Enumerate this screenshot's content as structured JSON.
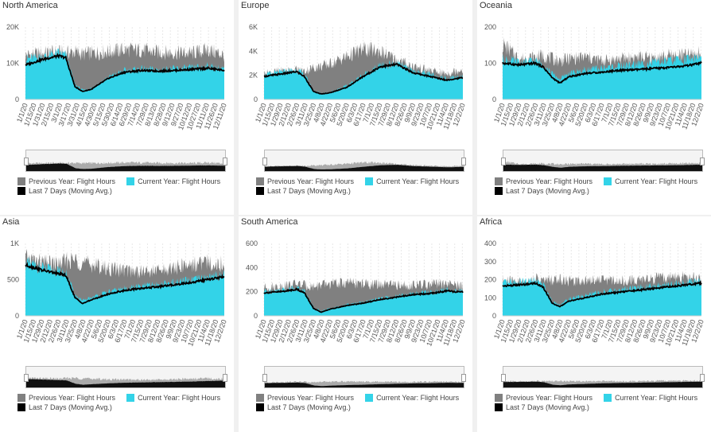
{
  "colors": {
    "previous": "#808080",
    "current": "#33d3e8",
    "moving": "#000000"
  },
  "legend": {
    "previous": "Previous Year: Flight Hours",
    "current": "Current Year: Flight Hours",
    "moving": "Last 7 Days (Moving Avg.)"
  },
  "chart_data": [
    {
      "type": "area",
      "title": "North America",
      "yticks": [
        "0",
        "10K",
        "20K"
      ],
      "ylim": [
        0,
        20000
      ],
      "xticks": [
        "1/1/20",
        "1/15/20",
        "1/31/20",
        "2/15/20",
        "3/1/20",
        "3/17/20",
        "3/31/20",
        "4/15/20",
        "4/30/20",
        "5/15/20",
        "5/30/20",
        "6/14/20",
        "6/29/20",
        "7/14/20",
        "7/29/20",
        "8/13/20",
        "8/28/20",
        "9/12/20",
        "9/27/20",
        "10/12/20",
        "10/27/20",
        "11/11/20",
        "11/26/20",
        "12/11/20"
      ],
      "series": [
        {
          "name": "Previous Year: Flight Hours",
          "x": [
            "1/1",
            "2/1",
            "3/1",
            "3/15",
            "4/1",
            "4/15",
            "5/1",
            "6/1",
            "7/1",
            "8/1",
            "9/1",
            "10/1",
            "11/1",
            "12/1",
            "12/31"
          ],
          "values": [
            12000,
            12500,
            12800,
            12600,
            12900,
            12300,
            12600,
            13000,
            13500,
            13400,
            12800,
            12700,
            12500,
            13500,
            12000
          ]
        },
        {
          "name": "Current Year: Flight Hours",
          "x": [
            "1/1",
            "2/1",
            "3/1",
            "3/15",
            "4/1",
            "4/15",
            "5/1",
            "6/1",
            "7/1",
            "8/1",
            "9/1",
            "10/1",
            "11/1",
            "12/1",
            "12/31"
          ],
          "values": [
            11000,
            11500,
            12500,
            12000,
            4000,
            2500,
            3000,
            6000,
            7800,
            8200,
            8000,
            8300,
            8500,
            9000,
            8200
          ]
        },
        {
          "name": "Last 7 Days (Moving Avg.)",
          "x": [
            "1/1",
            "2/1",
            "3/1",
            "3/15",
            "4/1",
            "4/15",
            "5/1",
            "6/1",
            "7/1",
            "8/1",
            "9/1",
            "10/1",
            "11/1",
            "12/1",
            "12/31"
          ],
          "values": [
            9500,
            11000,
            12000,
            11500,
            3500,
            2200,
            2800,
            5800,
            7500,
            8000,
            7800,
            8000,
            8300,
            8600,
            8000
          ]
        }
      ]
    },
    {
      "type": "area",
      "title": "Europe",
      "yticks": [
        "0",
        "2K",
        "4K",
        "6K"
      ],
      "ylim": [
        0,
        6000
      ],
      "xticks": [
        "1/1/20",
        "1/15/20",
        "1/29/20",
        "2/12/20",
        "2/26/20",
        "3/11/20",
        "3/25/20",
        "4/8/20",
        "4/22/20",
        "5/6/20",
        "5/20/20",
        "6/3/20",
        "6/17/20",
        "7/1/20",
        "7/15/20",
        "7/29/20",
        "8/12/20",
        "8/26/20",
        "9/9/20",
        "9/23/20",
        "10/7/20",
        "10/21/20",
        "11/4/20",
        "11/18/20",
        "12/2/20"
      ],
      "series": [
        {
          "name": "Previous Year: Flight Hours",
          "x": [
            "1/1",
            "2/1",
            "3/1",
            "3/15",
            "4/1",
            "4/15",
            "5/1",
            "6/1",
            "7/1",
            "8/1",
            "9/1",
            "10/1",
            "11/1",
            "12/1",
            "12/31"
          ],
          "values": [
            2100,
            2300,
            2400,
            2300,
            2600,
            2700,
            2900,
            3500,
            4100,
            3900,
            3200,
            2700,
            2300,
            2100,
            2500
          ]
        },
        {
          "name": "Current Year: Flight Hours",
          "x": [
            "1/1",
            "2/1",
            "3/1",
            "3/15",
            "4/1",
            "4/15",
            "5/1",
            "6/1",
            "7/1",
            "8/1",
            "9/1",
            "10/1",
            "11/1",
            "12/1",
            "12/31"
          ],
          "values": [
            2000,
            2200,
            2400,
            2000,
            700,
            500,
            600,
            1100,
            2000,
            2700,
            2900,
            2300,
            2000,
            1700,
            1900
          ]
        },
        {
          "name": "Last 7 Days (Moving Avg.)",
          "x": [
            "1/1",
            "2/1",
            "3/1",
            "3/15",
            "4/1",
            "4/15",
            "5/1",
            "6/1",
            "7/1",
            "8/1",
            "9/1",
            "10/1",
            "11/1",
            "12/1",
            "12/31"
          ],
          "values": [
            1900,
            2100,
            2300,
            1900,
            650,
            450,
            550,
            1000,
            1900,
            2700,
            2900,
            2200,
            1900,
            1600,
            1800
          ]
        }
      ]
    },
    {
      "type": "area",
      "title": "Oceania",
      "yticks": [
        "0",
        "100",
        "200"
      ],
      "ylim": [
        0,
        200
      ],
      "xticks": [
        "1/1/20",
        "1/15/20",
        "1/29/20",
        "2/12/20",
        "2/26/20",
        "3/11/20",
        "3/25/20",
        "4/8/20",
        "4/22/20",
        "5/6/20",
        "5/20/20",
        "6/3/20",
        "6/17/20",
        "7/1/20",
        "7/15/20",
        "7/29/20",
        "8/12/20",
        "8/26/20",
        "9/9/20",
        "9/23/20",
        "10/7/20",
        "10/21/20",
        "11/4/20",
        "11/18/20",
        "12/2/20"
      ],
      "series": [
        {
          "name": "Previous Year: Flight Hours",
          "x": [
            "1/1",
            "2/1",
            "3/1",
            "3/15",
            "4/1",
            "4/15",
            "5/1",
            "6/1",
            "7/1",
            "8/1",
            "9/1",
            "10/1",
            "11/1",
            "12/1",
            "12/31"
          ],
          "values": [
            150,
            110,
            115,
            120,
            110,
            105,
            110,
            115,
            105,
            110,
            115,
            112,
            118,
            120,
            125
          ]
        },
        {
          "name": "Current Year: Flight Hours",
          "x": [
            "1/1",
            "2/1",
            "3/1",
            "3/15",
            "4/1",
            "4/15",
            "5/1",
            "6/1",
            "7/1",
            "8/1",
            "9/1",
            "10/1",
            "11/1",
            "12/1",
            "12/31"
          ],
          "values": [
            110,
            100,
            105,
            95,
            70,
            55,
            70,
            80,
            85,
            90,
            95,
            100,
            105,
            110,
            115
          ]
        },
        {
          "name": "Last 7 Days (Moving Avg.)",
          "x": [
            "1/1",
            "2/1",
            "3/1",
            "3/15",
            "4/1",
            "4/15",
            "5/1",
            "6/1",
            "7/1",
            "8/1",
            "9/1",
            "10/1",
            "11/1",
            "12/1",
            "12/31"
          ],
          "values": [
            100,
            95,
            100,
            90,
            60,
            45,
            62,
            72,
            75,
            80,
            82,
            85,
            88,
            92,
            100
          ]
        }
      ]
    },
    {
      "type": "area",
      "title": "Asia",
      "yticks": [
        "0",
        "500",
        "1K"
      ],
      "ylim": [
        0,
        1000
      ],
      "xticks": [
        "1/1/20",
        "1/15/20",
        "1/29/20",
        "2/12/20",
        "2/26/20",
        "3/11/20",
        "3/25/20",
        "4/8/20",
        "4/22/20",
        "5/6/20",
        "5/20/20",
        "6/3/20",
        "6/17/20",
        "7/1/20",
        "7/15/20",
        "7/29/20",
        "8/12/20",
        "8/26/20",
        "9/9/20",
        "9/23/20",
        "10/7/20",
        "10/21/20",
        "11/4/20",
        "11/18/20",
        "12/2/20"
      ],
      "series": [
        {
          "name": "Previous Year: Flight Hours",
          "x": [
            "1/1",
            "2/1",
            "3/1",
            "3/15",
            "4/1",
            "4/15",
            "5/1",
            "6/1",
            "7/1",
            "8/1",
            "9/1",
            "10/1",
            "11/1",
            "12/1",
            "12/31"
          ],
          "values": [
            780,
            720,
            700,
            740,
            760,
            720,
            700,
            640,
            620,
            600,
            610,
            650,
            700,
            720,
            700
          ]
        },
        {
          "name": "Current Year: Flight Hours",
          "x": [
            "1/1",
            "2/1",
            "3/1",
            "3/15",
            "4/1",
            "4/15",
            "5/1",
            "6/1",
            "7/1",
            "8/1",
            "9/1",
            "10/1",
            "11/1",
            "12/1",
            "12/31"
          ],
          "values": [
            720,
            650,
            600,
            580,
            280,
            200,
            250,
            320,
            370,
            400,
            420,
            450,
            480,
            520,
            560
          ]
        },
        {
          "name": "Last 7 Days (Moving Avg.)",
          "x": [
            "1/1",
            "2/1",
            "3/1",
            "3/15",
            "4/1",
            "4/15",
            "5/1",
            "6/1",
            "7/1",
            "8/1",
            "9/1",
            "10/1",
            "11/1",
            "12/1",
            "12/31"
          ],
          "values": [
            700,
            630,
            580,
            560,
            250,
            170,
            220,
            300,
            350,
            380,
            400,
            430,
            460,
            500,
            540
          ]
        }
      ]
    },
    {
      "type": "area",
      "title": "South America",
      "yticks": [
        "0",
        "200",
        "400",
        "600"
      ],
      "ylim": [
        0,
        600
      ],
      "xticks": [
        "1/1/20",
        "1/15/20",
        "1/29/20",
        "2/12/20",
        "2/26/20",
        "3/11/20",
        "3/25/20",
        "4/8/20",
        "4/22/20",
        "5/6/20",
        "5/20/20",
        "6/3/20",
        "6/17/20",
        "7/1/20",
        "7/15/20",
        "7/29/20",
        "8/12/20",
        "8/26/20",
        "9/9/20",
        "9/23/20",
        "10/7/20",
        "10/21/20",
        "11/4/20",
        "11/18/20",
        "12/2/20"
      ],
      "series": [
        {
          "name": "Previous Year: Flight Hours",
          "x": [
            "1/1",
            "2/1",
            "3/1",
            "3/15",
            "4/1",
            "4/15",
            "5/1",
            "6/1",
            "7/1",
            "8/1",
            "9/1",
            "10/1",
            "11/1",
            "12/1",
            "12/31"
          ],
          "values": [
            230,
            240,
            260,
            250,
            240,
            250,
            260,
            270,
            260,
            255,
            250,
            250,
            255,
            260,
            240
          ]
        },
        {
          "name": "Current Year: Flight Hours",
          "x": [
            "1/1",
            "2/1",
            "3/1",
            "3/15",
            "4/1",
            "4/15",
            "5/1",
            "6/1",
            "7/1",
            "8/1",
            "9/1",
            "10/1",
            "11/1",
            "12/1",
            "12/31"
          ],
          "values": [
            200,
            210,
            230,
            200,
            70,
            40,
            60,
            90,
            110,
            140,
            160,
            180,
            190,
            210,
            200
          ]
        },
        {
          "name": "Last 7 Days (Moving Avg.)",
          "x": [
            "1/1",
            "2/1",
            "3/1",
            "3/15",
            "4/1",
            "4/15",
            "5/1",
            "6/1",
            "7/1",
            "8/1",
            "9/1",
            "10/1",
            "11/1",
            "12/1",
            "12/31"
          ],
          "values": [
            190,
            200,
            220,
            190,
            60,
            30,
            55,
            85,
            105,
            135,
            155,
            175,
            185,
            205,
            195
          ]
        }
      ]
    },
    {
      "type": "area",
      "title": "Africa",
      "yticks": [
        "0",
        "100",
        "200",
        "300",
        "400"
      ],
      "ylim": [
        0,
        400
      ],
      "xticks": [
        "1/1/20",
        "1/15/20",
        "1/29/20",
        "2/12/20",
        "2/26/20",
        "3/11/20",
        "3/25/20",
        "4/8/20",
        "4/22/20",
        "5/6/20",
        "5/20/20",
        "6/3/20",
        "6/17/20",
        "7/1/20",
        "7/15/20",
        "7/29/20",
        "8/12/20",
        "8/26/20",
        "9/9/20",
        "9/23/20",
        "10/7/20",
        "10/21/20",
        "11/4/20",
        "11/18/20",
        "12/2/20"
      ],
      "series": [
        {
          "name": "Previous Year: Flight Hours",
          "x": [
            "1/1",
            "2/1",
            "3/1",
            "3/15",
            "4/1",
            "4/15",
            "5/1",
            "6/1",
            "7/1",
            "8/1",
            "9/1",
            "10/1",
            "11/1",
            "12/1",
            "12/31"
          ],
          "values": [
            190,
            185,
            200,
            190,
            195,
            200,
            190,
            195,
            200,
            190,
            195,
            200,
            205,
            210,
            200
          ]
        },
        {
          "name": "Current Year: Flight Hours",
          "x": [
            "1/1",
            "2/1",
            "3/1",
            "3/15",
            "4/1",
            "4/15",
            "5/1",
            "6/1",
            "7/1",
            "8/1",
            "9/1",
            "10/1",
            "11/1",
            "12/1",
            "12/31"
          ],
          "values": [
            175,
            180,
            190,
            170,
            80,
            60,
            90,
            110,
            130,
            140,
            150,
            160,
            170,
            180,
            185
          ]
        },
        {
          "name": "Last 7 Days (Moving Avg.)",
          "x": [
            "1/1",
            "2/1",
            "3/1",
            "3/15",
            "4/1",
            "4/15",
            "5/1",
            "6/1",
            "7/1",
            "8/1",
            "9/1",
            "10/1",
            "11/1",
            "12/1",
            "12/31"
          ],
          "values": [
            165,
            170,
            180,
            160,
            70,
            50,
            80,
            100,
            120,
            130,
            140,
            150,
            160,
            170,
            180
          ]
        }
      ]
    }
  ]
}
